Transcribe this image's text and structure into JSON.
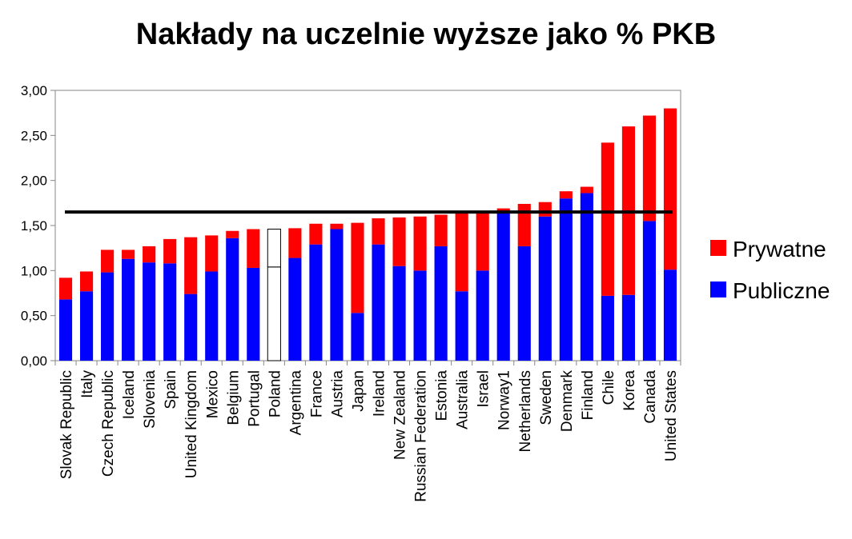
{
  "chart_data": {
    "type": "bar",
    "stacked": true,
    "title": "Nakłady na uczelnie wyższe jako % PKB",
    "xlabel": "",
    "ylabel": "",
    "ylim": [
      0,
      3
    ],
    "yticks": [
      "0,00",
      "0,50",
      "1,00",
      "1,50",
      "2,00",
      "2,50",
      "3,00"
    ],
    "grid": false,
    "legend_position": "right",
    "categories": [
      "Slovak Republic",
      "Italy",
      "Czech Republic",
      "Iceland",
      "Slovenia",
      "Spain",
      "United Kingdom",
      "Mexico",
      "Belgium",
      "Portugal",
      "Poland",
      "Argentina",
      "France",
      "Austria",
      "Japan",
      "Ireland",
      "New Zealand",
      "Russian Federation",
      "Estonia",
      "Australia",
      "Israel",
      "Norway1",
      "Netherlands",
      "Sweden",
      "Denmark",
      "Finland",
      "Chile",
      "Korea",
      "Canada",
      "United States"
    ],
    "series": [
      {
        "name": "Publiczne",
        "color": "#0000ff",
        "values": [
          0.68,
          0.77,
          0.98,
          1.13,
          1.09,
          1.08,
          0.74,
          0.99,
          1.36,
          1.03,
          1.04,
          1.14,
          1.29,
          1.46,
          0.53,
          1.29,
          1.05,
          1.0,
          1.27,
          0.77,
          1.0,
          1.65,
          1.27,
          1.6,
          1.8,
          1.86,
          0.72,
          0.73,
          1.55,
          1.01
        ]
      },
      {
        "name": "Prywatne",
        "color": "#ff0000",
        "values": [
          0.24,
          0.22,
          0.25,
          0.1,
          0.18,
          0.27,
          0.63,
          0.4,
          0.08,
          0.43,
          0.42,
          0.33,
          0.23,
          0.06,
          1.0,
          0.29,
          0.54,
          0.6,
          0.35,
          0.88,
          0.64,
          0.04,
          0.47,
          0.16,
          0.08,
          0.07,
          1.7,
          1.87,
          1.17,
          1.79
        ]
      }
    ],
    "highlight_category": "Poland",
    "reference_line": {
      "value": 1.65,
      "color": "#000000"
    },
    "legend": [
      {
        "label": "Prywatne",
        "color": "#ff0000"
      },
      {
        "label": "Publiczne",
        "color": "#0000ff"
      }
    ]
  }
}
